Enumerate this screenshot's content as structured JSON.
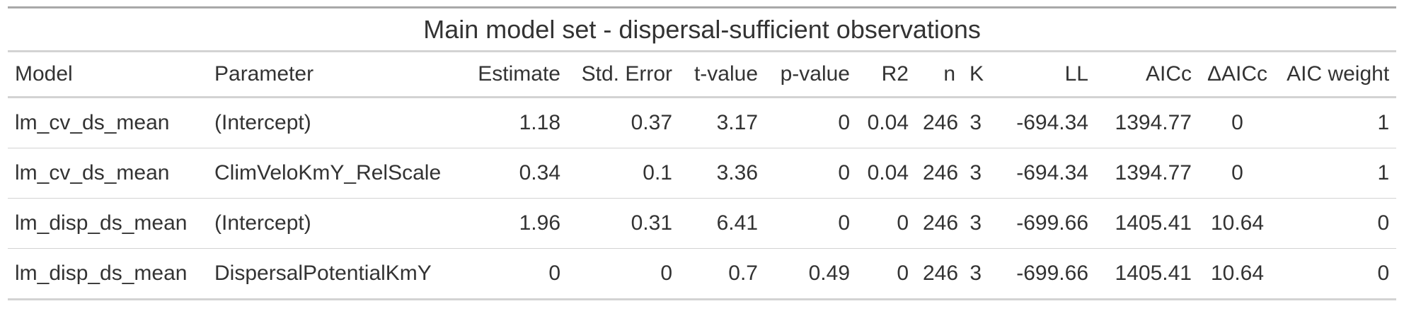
{
  "table": {
    "title": "Main model set - dispersal-sufficient observations",
    "columns": [
      "Model",
      "Parameter",
      "Estimate",
      "Std. Error",
      "t-value",
      "p-value",
      "R2",
      "n",
      "K",
      "LL",
      "AICc",
      "ΔAICc",
      "AIC weight"
    ],
    "rows": [
      [
        "lm_cv_ds_mean",
        "(Intercept)",
        "1.18",
        "0.37",
        "3.17",
        "0",
        "0.04",
        "246",
        "3",
        "-694.34",
        "1394.77",
        "0",
        "1"
      ],
      [
        "lm_cv_ds_mean",
        "ClimVeloKmY_RelScale",
        "0.34",
        "0.1",
        "3.36",
        "0",
        "0.04",
        "246",
        "3",
        "-694.34",
        "1394.77",
        "0",
        "1"
      ],
      [
        "lm_disp_ds_mean",
        "(Intercept)",
        "1.96",
        "0.31",
        "6.41",
        "0",
        "0",
        "246",
        "3",
        "-699.66",
        "1405.41",
        "10.64",
        "0"
      ],
      [
        "lm_disp_ds_mean",
        "DispersalPotentialKmY",
        "0",
        "0",
        "0.7",
        "0.49",
        "0",
        "246",
        "3",
        "-699.66",
        "1405.41",
        "10.64",
        "0"
      ]
    ]
  }
}
